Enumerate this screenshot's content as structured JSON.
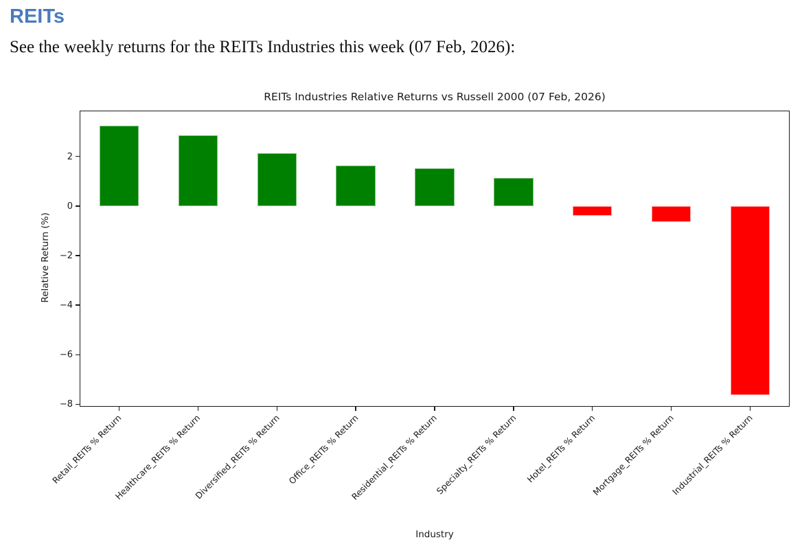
{
  "page": {
    "heading": "REITs",
    "description": "See the weekly returns for the REITs Industries this week (07 Feb, 2026):"
  },
  "colors": {
    "heading_blue": "#4a7bbd",
    "positive_bar": "#008000",
    "negative_bar": "#ff0000",
    "positive_edge": "#7fbf7f",
    "negative_edge": "#ff9e9e"
  },
  "chart_data": {
    "type": "bar",
    "title": "REITs Industries Relative Returns vs Russell 2000 (07 Feb, 2026)",
    "xlabel": "Industry",
    "ylabel": "Relative Return (%)",
    "categories": [
      "Retail_REITs % Return",
      "Healthcare_REITs % Return",
      "Diversified_REITs % Return",
      "Office_REITs % Return",
      "Residential_REITs % Return",
      "Specialty_REITs % Return",
      "Hotel_REITs % Return",
      "Mortgage_REITs % Return",
      "Industrial_REITs % Return"
    ],
    "values": [
      3.23,
      2.85,
      2.14,
      1.63,
      1.53,
      1.14,
      -0.39,
      -0.63,
      -7.62
    ],
    "bar_colors": [
      "green",
      "green",
      "green",
      "green",
      "green",
      "green",
      "red",
      "red",
      "red"
    ],
    "ylim": [
      -8.1,
      3.85
    ],
    "yticks": [
      2,
      0,
      -2,
      -4,
      -6,
      -8
    ],
    "grid": false,
    "legend": null,
    "x_tick_rotation_deg": 45
  }
}
